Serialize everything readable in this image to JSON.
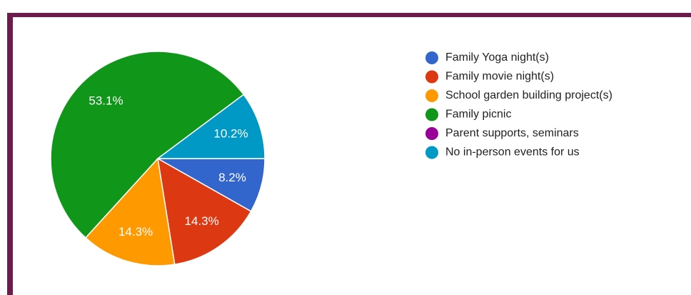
{
  "chart_data": {
    "type": "pie",
    "categories": [
      "Family Yoga night(s)",
      "Family movie night(s)",
      "School garden building project(s)",
      "Family picnic",
      "Parent supports, seminars",
      "No in-person events for us"
    ],
    "values": [
      8.2,
      14.3,
      14.3,
      53.1,
      0,
      10.2
    ],
    "value_labels": [
      "8.2%",
      "14.3%",
      "14.3%",
      "53.1%",
      null,
      "10.2%"
    ],
    "colors": [
      "#3366cc",
      "#dc3912",
      "#ff9900",
      "#109618",
      "#990099",
      "#0099c6"
    ],
    "legend": "right"
  }
}
